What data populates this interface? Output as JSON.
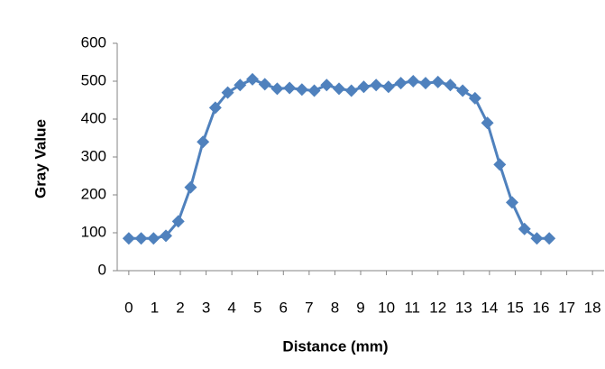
{
  "chart_data": {
    "type": "scatter-line",
    "x_label": "Distance (mm)",
    "y_label": "Gray Value",
    "xlim": [
      -0.45,
      18.45
    ],
    "xticks": [
      0,
      1,
      2,
      3,
      4,
      5,
      6,
      7,
      8,
      9,
      10,
      11,
      12,
      13,
      14,
      15,
      16,
      17,
      18
    ],
    "ylim": [
      0,
      600
    ],
    "yticks": [
      0,
      100,
      200,
      300,
      400,
      500,
      600
    ],
    "grid": false,
    "series": [
      {
        "color": "#4f81bd",
        "x": [
          0,
          0.48,
          0.96,
          1.44,
          1.92,
          2.4,
          2.88,
          3.36,
          3.84,
          4.32,
          4.8,
          5.28,
          5.76,
          6.24,
          6.72,
          7.2,
          7.68,
          8.16,
          8.64,
          9.12,
          9.6,
          10.08,
          10.56,
          11.04,
          11.52,
          12,
          12.48,
          12.96,
          13.44,
          13.92,
          14.4,
          14.88,
          15.36,
          15.84,
          16.32
        ],
        "values": [
          85,
          85,
          85,
          92,
          130,
          220,
          340,
          430,
          470,
          490,
          505,
          492,
          480,
          482,
          478,
          475,
          490,
          480,
          475,
          485,
          490,
          485,
          495,
          500,
          495,
          498,
          490,
          475,
          455,
          390,
          280,
          180,
          110,
          85,
          85
        ]
      }
    ]
  }
}
